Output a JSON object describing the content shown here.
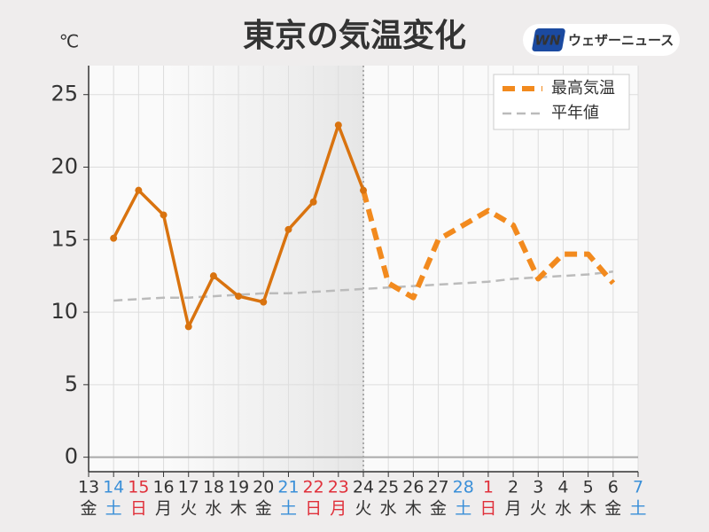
{
  "chart_data": {
    "type": "line",
    "title": "東京の気温変化",
    "y_unit": "℃",
    "logo": {
      "mark": "WN",
      "text": "ウェザーニュース"
    },
    "categories": [
      "13",
      "14",
      "15",
      "16",
      "17",
      "18",
      "19",
      "20",
      "21",
      "22",
      "23",
      "24",
      "25",
      "26",
      "27",
      "28",
      "1",
      "2",
      "3",
      "4",
      "5",
      "6",
      "7"
    ],
    "weekdays": [
      "金",
      "土",
      "日",
      "月",
      "火",
      "水",
      "木",
      "金",
      "土",
      "日",
      "月",
      "火",
      "水",
      "木",
      "金",
      "土",
      "日",
      "月",
      "火",
      "水",
      "木",
      "金",
      "土"
    ],
    "label_colors": [
      "#333",
      "#3a8fd8",
      "#e0303a",
      "#333",
      "#333",
      "#333",
      "#333",
      "#333",
      "#3a8fd8",
      "#e0303a",
      "#e0303a",
      "#333",
      "#333",
      "#333",
      "#333",
      "#3a8fd8",
      "#e0303a",
      "#333",
      "#333",
      "#333",
      "#333",
      "#333",
      "#3a8fd8"
    ],
    "series": [
      {
        "color": "#d9730f",
        "style": "solid",
        "values": [
          null,
          15.1,
          18.4,
          16.7,
          9.0,
          12.5,
          11.1,
          10.7,
          15.7,
          17.6,
          22.9,
          18.4,
          null,
          null,
          null,
          null,
          null,
          null,
          null,
          null,
          null,
          null,
          null
        ]
      },
      {
        "name": "最高気温",
        "color": "#f28a1e",
        "style": "dashed",
        "values": [
          null,
          null,
          null,
          null,
          null,
          null,
          null,
          null,
          null,
          null,
          null,
          18.4,
          12,
          11,
          15,
          16,
          17,
          16,
          12.3,
          14,
          14,
          12,
          null
        ]
      },
      {
        "name": "平年値",
        "color": "#bbbbbb",
        "style": "thin-dashed",
        "values": [
          null,
          10.8,
          10.9,
          11.0,
          11.0,
          11.1,
          11.2,
          11.3,
          11.3,
          11.4,
          11.5,
          11.6,
          11.7,
          11.8,
          11.9,
          12.0,
          12.1,
          12.3,
          12.4,
          12.5,
          12.6,
          12.8,
          null
        ]
      }
    ],
    "ylim": [
      -1,
      27
    ],
    "yticks": [
      0,
      5,
      10,
      15,
      20,
      25
    ],
    "grid": true
  }
}
